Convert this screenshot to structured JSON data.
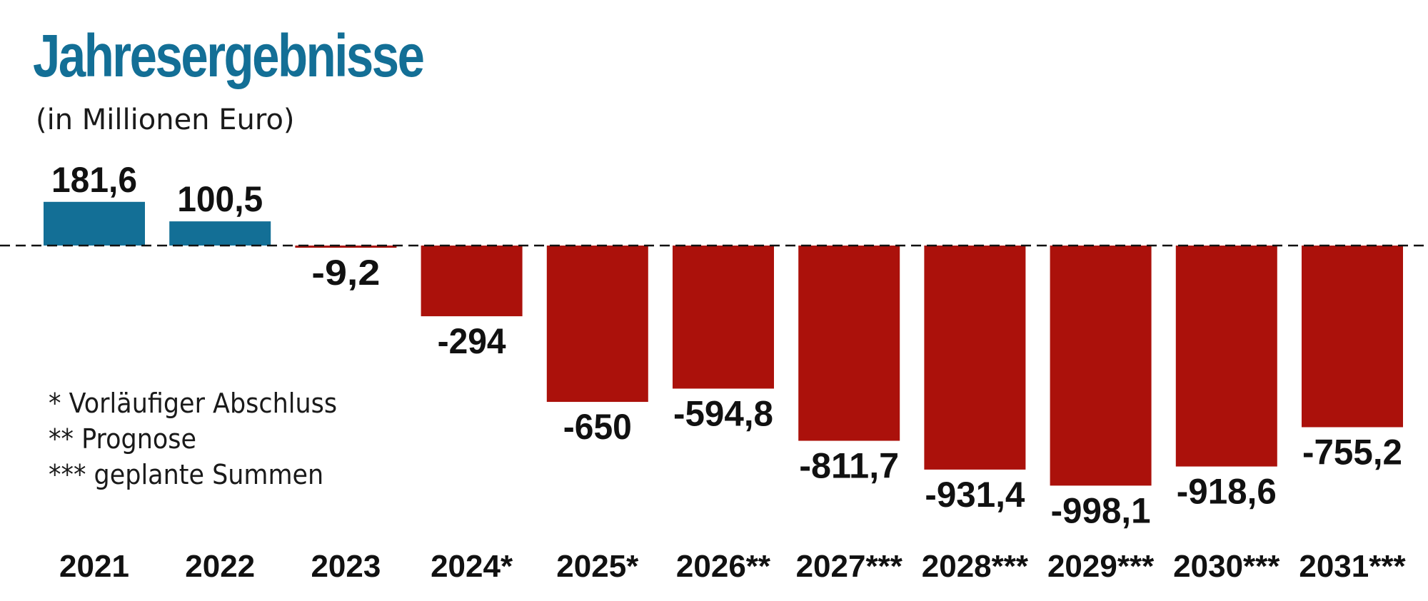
{
  "chart_data": {
    "type": "bar",
    "title": "Jahresergebnisse",
    "subtitle": "(in Millionen Euro)",
    "categories": [
      "2021",
      "2022",
      "2023",
      "2024*",
      "2025*",
      "2026**",
      "2027***",
      "2028***",
      "2029***",
      "2030***",
      "2031***"
    ],
    "values": [
      181.6,
      100.5,
      -9.2,
      -294,
      -650,
      -594.8,
      -811.7,
      -931.4,
      -998.1,
      -918.6,
      -755.2
    ],
    "value_labels": [
      "181,6",
      "100,5",
      "-9,2",
      "-294",
      "-650",
      "-594,8",
      "-811,7",
      "-931,4",
      "-998,1",
      "-918,6",
      "-755,2"
    ],
    "colors": {
      "positive": "#136f96",
      "negative": "#ab110b"
    },
    "notes": [
      "* Vorläufiger Abschluss",
      "** Prognose",
      "*** geplante Summen"
    ],
    "baseline": "dashed",
    "grid": false
  }
}
